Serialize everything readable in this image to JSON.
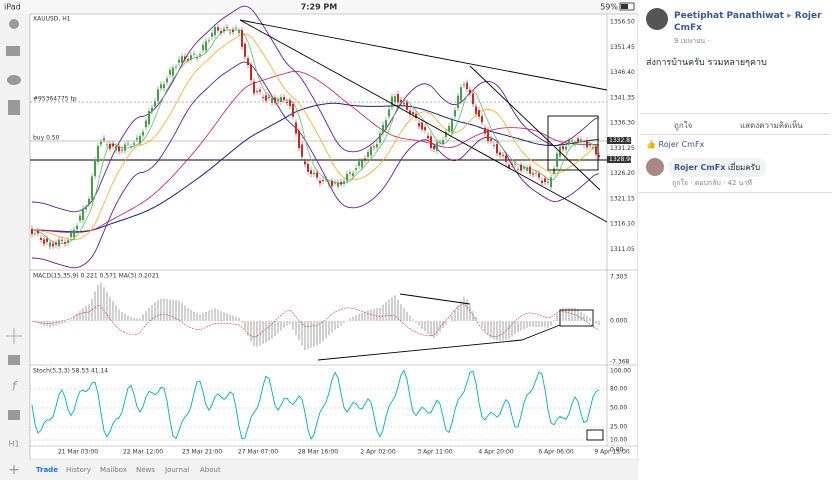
{
  "status": {
    "device": "iPad",
    "time": "7:29 PM",
    "battery": "59%"
  },
  "chart": {
    "symbol": "XAUUSD, H1",
    "price_labels": [
      "1356.50",
      "1351.45",
      "1346.40",
      "1341.35",
      "1336.30",
      "1331.25",
      "1326.20",
      "1321.15",
      "1316.10",
      "1311.05"
    ],
    "tp_label": "#95364775 tp",
    "buy_label": "buy 0.50",
    "current_prices": [
      "1332.82",
      "1328.98"
    ],
    "macd_label": "MACD(15,35,9) 0.221 0.571 MA(3) 0.2021",
    "macd_axis": [
      "7.303",
      "0.000",
      "-7.368"
    ],
    "stoch_label": "Stoch(5,3,3) 58.53 41.14",
    "stoch_axis": [
      "100.00",
      "80.00",
      "50.00",
      "25.00",
      "10.00",
      "0.00"
    ],
    "time_labels": [
      "21 Mar 03:00",
      "22 Mar 12:00",
      "23 Mar 21:00",
      "27 Mar 07:00",
      "28 Mar 16:00",
      "2 Apr 02:00",
      "3 Apr 11:00",
      "4 Apr 20:00",
      "6 Apr 06:00",
      "9 Apr 15:00"
    ],
    "timeframe": "H1"
  },
  "tabs": [
    "Trade",
    "History",
    "Mailbox",
    "News",
    "Journal",
    "About"
  ],
  "post": {
    "author": "Peetiphat Panathiwat",
    "arrow": "▸",
    "target": "Rojer CmFx",
    "date": "9 เมษายน ·",
    "text": "ส่งการบ้านครับ รวมหลายๆคาบ",
    "actions": [
      "ถูกใจ",
      "แสดงความคิดเห็น"
    ],
    "liker": "Rojer CmFx",
    "comment": {
      "author": "Rojer CmFx",
      "text": "เยี่ยมครับ",
      "actions": [
        "ถูกใจ",
        "ตอบกลับ",
        "42 นาที"
      ]
    }
  }
}
